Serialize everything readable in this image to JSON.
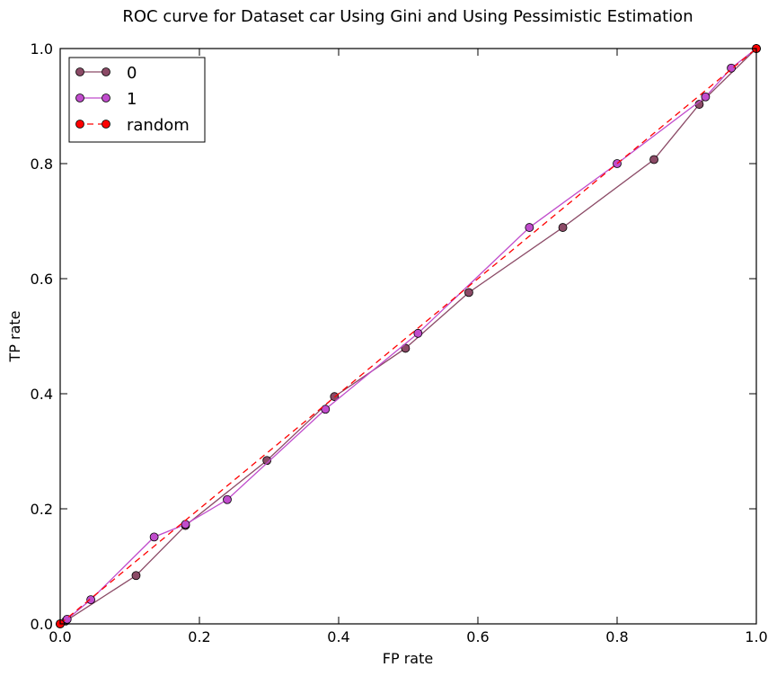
{
  "chart_data": {
    "type": "line",
    "title": "ROC curve for Dataset car Using Gini and Using Pessimistic Estimation",
    "xlabel": "FP rate",
    "ylabel": "TP rate",
    "xlim": [
      0.0,
      1.0
    ],
    "ylim": [
      0.0,
      1.0
    ],
    "xticks": [
      "0.0",
      "0.2",
      "0.4",
      "0.6",
      "0.8",
      "1.0"
    ],
    "yticks": [
      "0.0",
      "0.2",
      "0.4",
      "0.6",
      "0.8",
      "1.0"
    ],
    "grid": false,
    "legend_position": "top-left",
    "series": [
      {
        "name": "0",
        "color": "#8b4a66",
        "style": "solid",
        "x": [
          0.0,
          0.008,
          0.109,
          0.18,
          0.297,
          0.394,
          0.496,
          0.587,
          0.722,
          0.853,
          0.918,
          1.0
        ],
        "y": [
          0.0,
          0.005,
          0.084,
          0.171,
          0.284,
          0.395,
          0.479,
          0.576,
          0.689,
          0.807,
          0.903,
          1.0
        ]
      },
      {
        "name": "1",
        "color": "#c04ccc",
        "style": "solid",
        "x": [
          0.0,
          0.01,
          0.044,
          0.135,
          0.18,
          0.24,
          0.381,
          0.514,
          0.674,
          0.8,
          0.927,
          0.964,
          1.0
        ],
        "y": [
          0.0,
          0.008,
          0.042,
          0.151,
          0.173,
          0.216,
          0.373,
          0.505,
          0.689,
          0.8,
          0.916,
          0.966,
          1.0
        ]
      },
      {
        "name": "random",
        "color": "#ff0000",
        "style": "dashed",
        "x": [
          0.0,
          1.0
        ],
        "y": [
          0.0,
          1.0
        ]
      }
    ]
  }
}
